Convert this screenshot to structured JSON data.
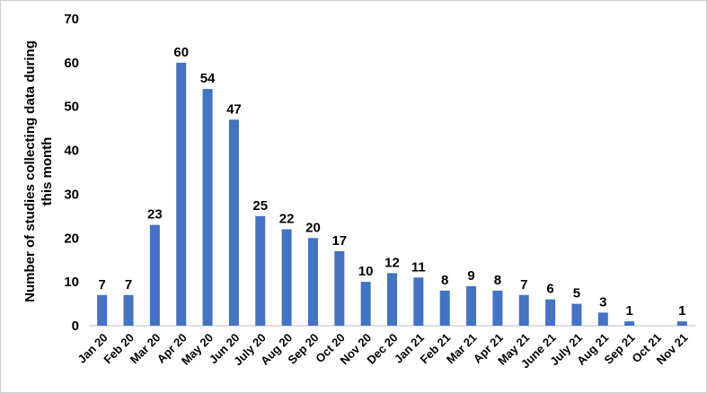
{
  "chart_data": {
    "type": "bar",
    "title": "",
    "xlabel": "",
    "ylabel_lines": [
      "Number of studies collecting data during",
      "this month"
    ],
    "ylim": [
      0,
      70
    ],
    "yticks": [
      0,
      10,
      20,
      30,
      40,
      50,
      60,
      70
    ],
    "grid": false,
    "legend": "none",
    "bar_color": "#4472C4",
    "categories": [
      "Jan 20",
      "Feb 20",
      "Mar 20",
      "Apr 20",
      "May 20",
      "Jun 20",
      "July 20",
      "Aug 20",
      "Sep 20",
      "Oct 20",
      "Nov 20",
      "Dec 20",
      "Jan 21",
      "Feb 21",
      "Mar 21",
      "Apr 21",
      "May 21",
      "June 21",
      "July 21",
      "Aug 21",
      "Sep 21",
      "Oct 21",
      "Nov 21"
    ],
    "values": [
      7,
      7,
      23,
      60,
      54,
      47,
      25,
      22,
      20,
      17,
      10,
      12,
      11,
      8,
      9,
      8,
      7,
      6,
      5,
      3,
      1,
      null,
      1
    ]
  }
}
